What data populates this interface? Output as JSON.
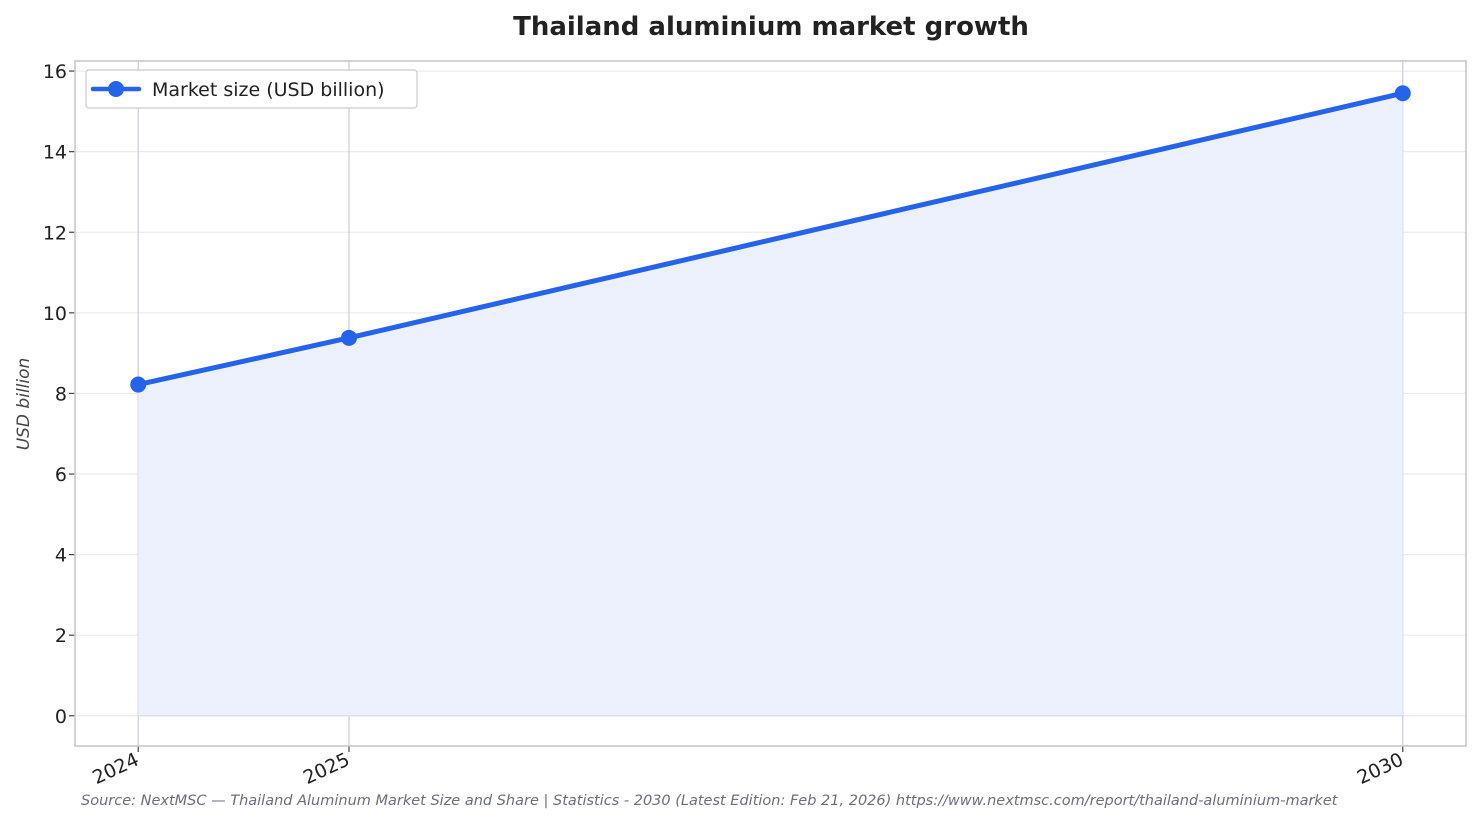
{
  "chart_data": {
    "type": "line",
    "title": "Thailand aluminium market growth",
    "xlabel": "",
    "ylabel": "USD billion",
    "x": [
      "2024",
      "2025",
      "2030"
    ],
    "x_positions": [
      2024,
      2025,
      2030
    ],
    "series": [
      {
        "name": "Market size (USD billion)",
        "values": [
          8.22,
          9.38,
          15.45
        ]
      }
    ],
    "ylim": [
      -0.75,
      16.25
    ],
    "yticks": [
      0,
      2,
      4,
      6,
      8,
      10,
      12,
      14,
      16
    ],
    "grid": true,
    "area_fill": true,
    "legend_position": "top-left",
    "colors": {
      "line": "#2563eb",
      "fill": "#ecf1fd",
      "grid": "#ebebeb",
      "vgrid": "#c8ccd6",
      "frame": "#c8c8c8"
    },
    "source": "Source: NextMSC — Thailand Aluminum Market Size and Share | Statistics - 2030 (Latest Edition: Feb 21, 2026) https://www.nextmsc.com/report/thailand-aluminium-market"
  }
}
